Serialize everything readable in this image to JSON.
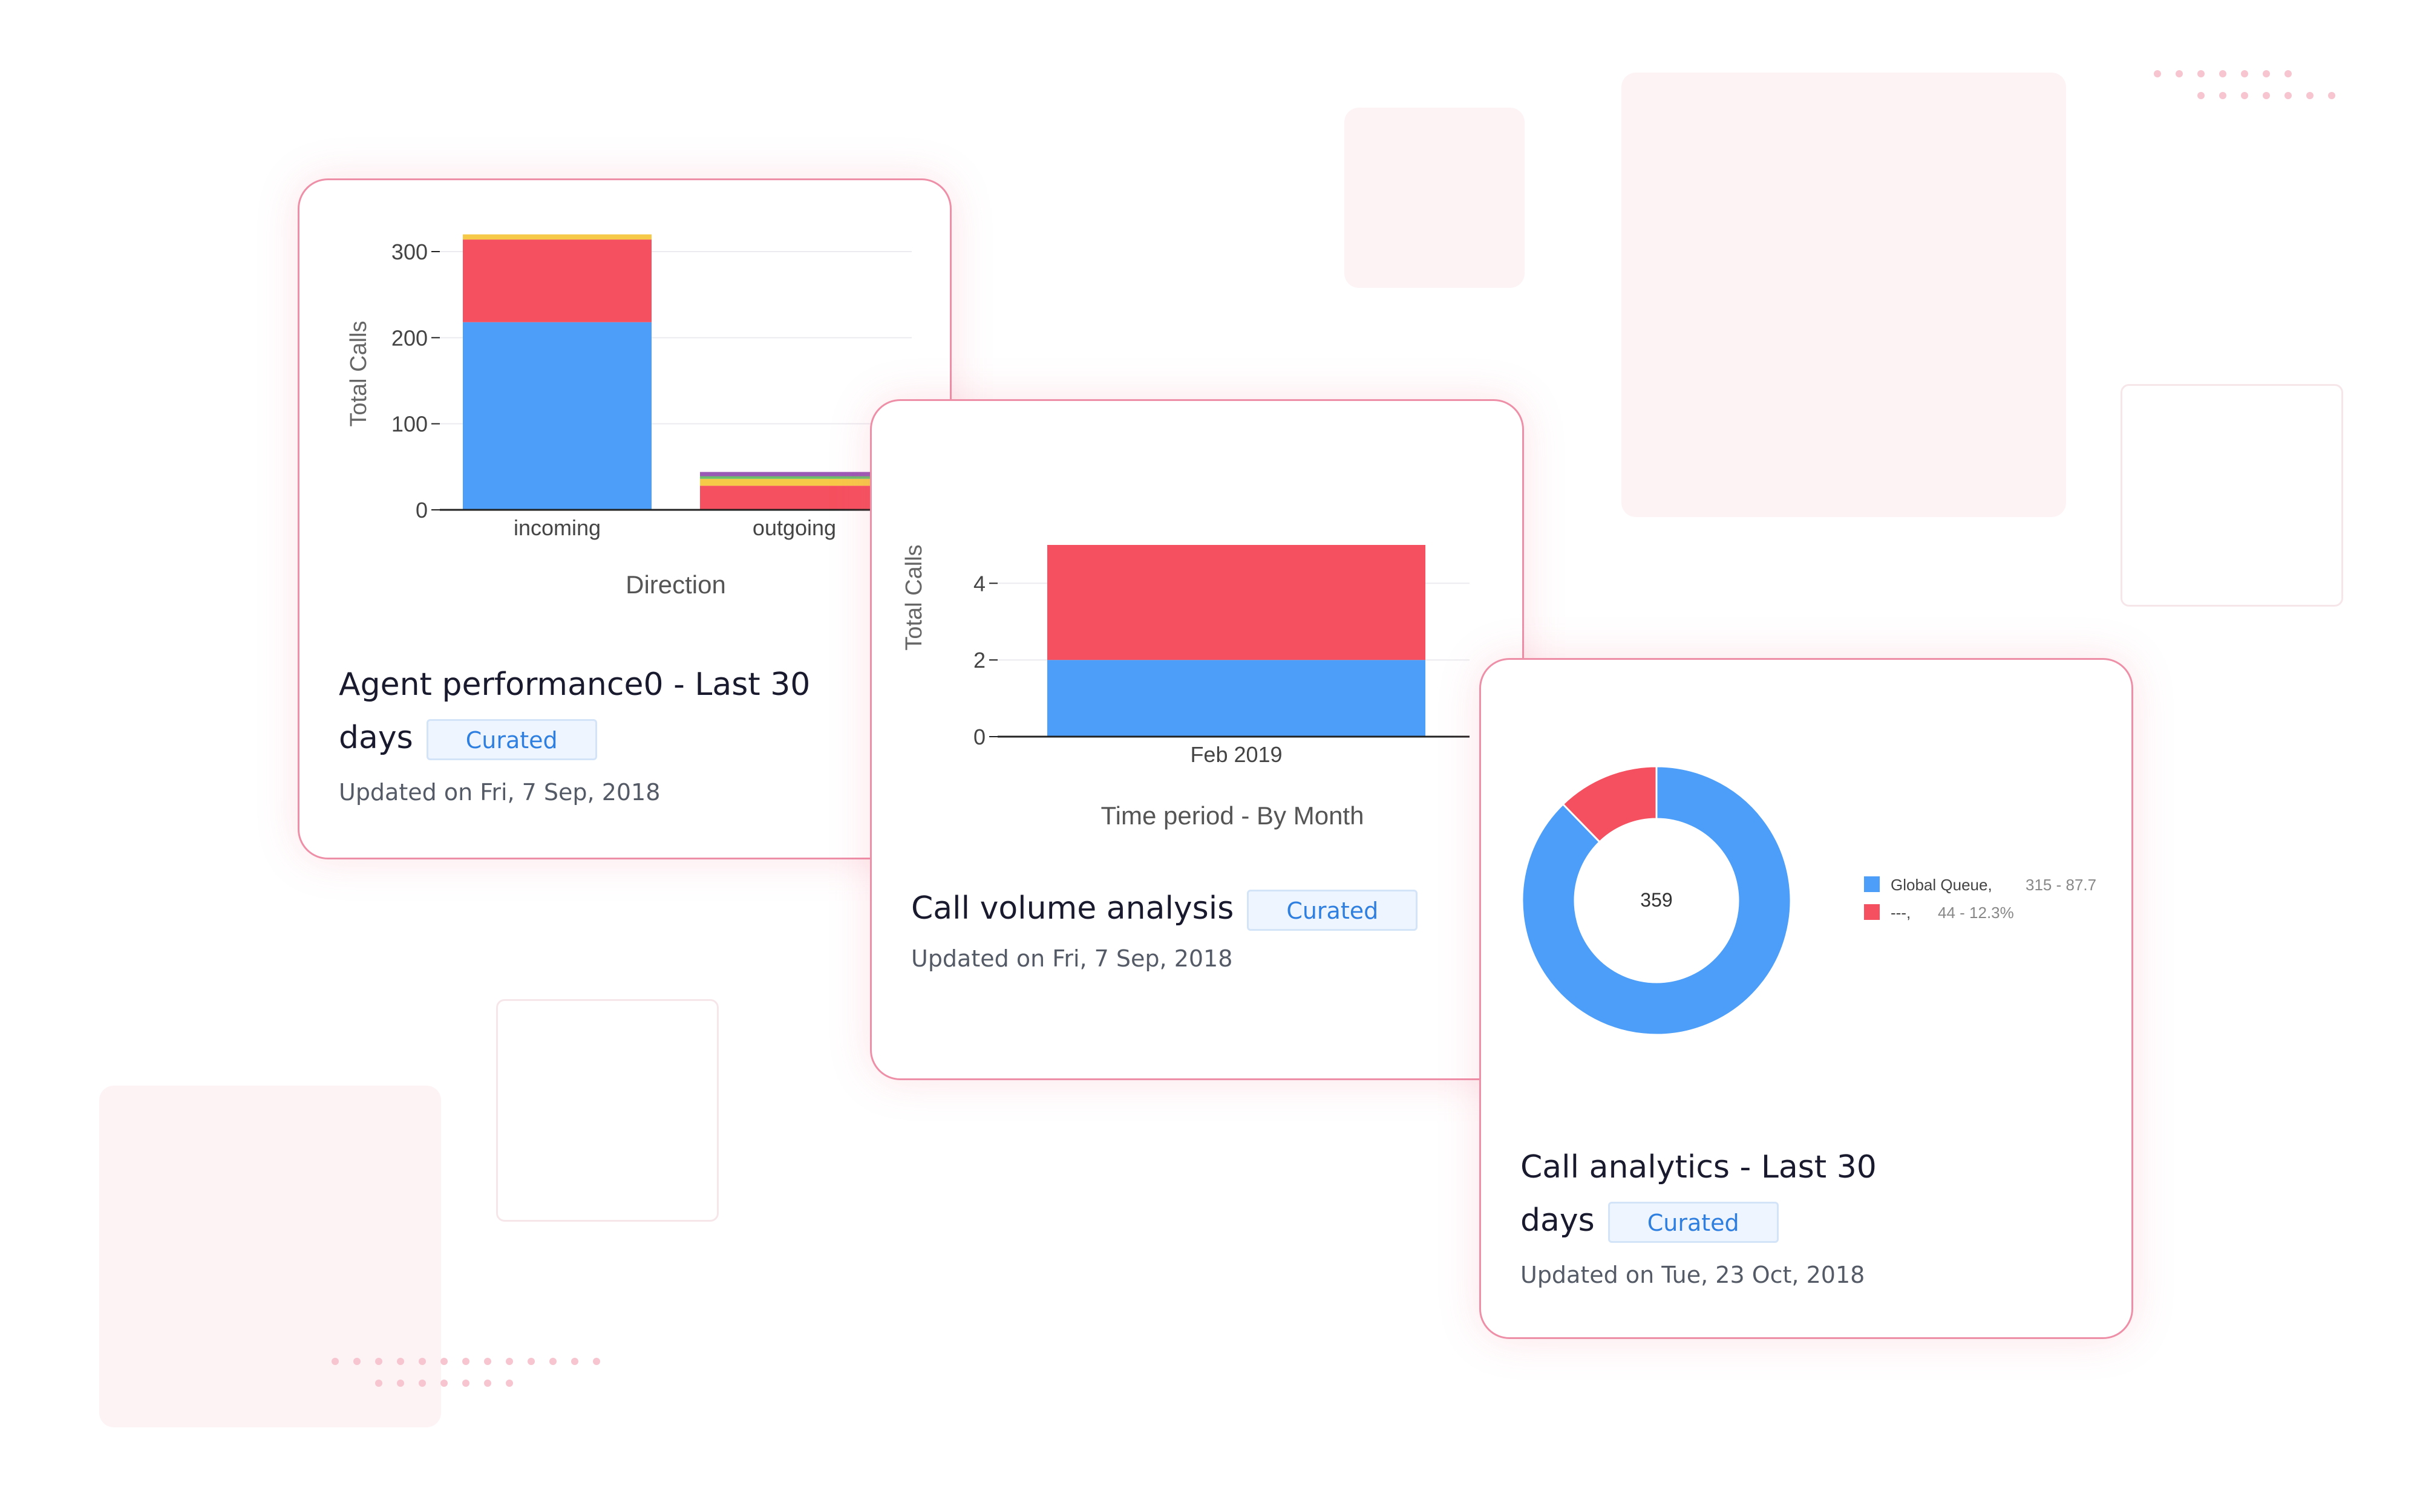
{
  "cards": [
    {
      "title_line1": "Agent performance0 - Last 30",
      "title_line2": "days",
      "badge": "Curated",
      "updated": "Updated on Fri, 7 Sep, 2018"
    },
    {
      "title_line1": "Call volume analysis",
      "badge": "Curated",
      "updated": "Updated on Fri, 7 Sep, 2018"
    },
    {
      "title_line1": "Call analytics - Last 30",
      "title_line2": "days",
      "badge": "Curated",
      "updated": "Updated on Tue, 23 Oct, 2018"
    }
  ],
  "colors": {
    "blue": "#4c9ef8",
    "red": "#f5505f",
    "yellow": "#f7c948",
    "purple": "#9b59b6",
    "green": "#6abf69",
    "card_border": "#ee8fa8",
    "badge_text": "#2f7fe0"
  },
  "chart_data": [
    {
      "type": "bar",
      "stacked": true,
      "categories": [
        "incoming",
        "outgoing"
      ],
      "series": [
        {
          "color": "#4c9ef8",
          "values": [
            218,
            0
          ]
        },
        {
          "color": "#f5505f",
          "values": [
            96,
            28
          ]
        },
        {
          "color": "#f7c948",
          "values": [
            6,
            8
          ]
        },
        {
          "color": "#6abf69",
          "values": [
            0,
            3
          ]
        },
        {
          "color": "#9b59b6",
          "values": [
            0,
            5
          ]
        }
      ],
      "xlabel": "Direction",
      "ylabel": "Total Calls",
      "yticks": [
        0,
        100,
        200,
        300
      ],
      "ylim": [
        0,
        300
      ],
      "grid": true
    },
    {
      "type": "bar",
      "stacked": true,
      "categories": [
        "Feb 2019"
      ],
      "series": [
        {
          "color": "#4c9ef8",
          "values": [
            2
          ]
        },
        {
          "color": "#f5505f",
          "values": [
            3
          ]
        }
      ],
      "xlabel": "Time period - By Month",
      "ylabel": "Total Calls",
      "yticks": [
        0,
        2,
        4
      ],
      "ylim": [
        0,
        5
      ],
      "grid": true
    },
    {
      "type": "pie",
      "donut": true,
      "center_label": "359",
      "slices": [
        {
          "label": "Global Queue,",
          "value": 315,
          "detail": "315 - 87.7",
          "color": "#4c9ef8"
        },
        {
          "label": "---,",
          "value": 44,
          "detail": "44 - 12.3%",
          "color": "#f5505f"
        }
      ],
      "legend": "right"
    }
  ]
}
